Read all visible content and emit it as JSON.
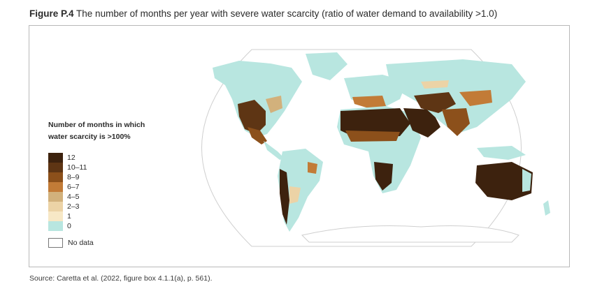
{
  "caption": {
    "label": "Figure P.4",
    "text": "The number of months per year with severe water scarcity (ratio of water demand to availability >1.0)"
  },
  "legend": {
    "title_line1": "Number of months in which",
    "title_line2": "water scarcity is >100%",
    "items": [
      {
        "label": "12",
        "color": "#3d220e"
      },
      {
        "label": "10–11",
        "color": "#5e3514"
      },
      {
        "label": "8–9",
        "color": "#8c501b"
      },
      {
        "label": "6–7",
        "color": "#c27b37"
      },
      {
        "label": "4–5",
        "color": "#d2b17c"
      },
      {
        "label": "2–3",
        "color": "#ecd3a6"
      },
      {
        "label": "1",
        "color": "#f7e8c6"
      },
      {
        "label": "0",
        "color": "#b8e6e0"
      }
    ],
    "no_data_label": "No data"
  },
  "map_colors": {
    "ocean": "#ffffff",
    "graticule": "#cfcfcf",
    "no_scarcity": "#b8e6e0",
    "severe": "#3d220e"
  },
  "source": "Source: Caretta et al. (2022, figure box 4.1.1(a), p. 561)."
}
